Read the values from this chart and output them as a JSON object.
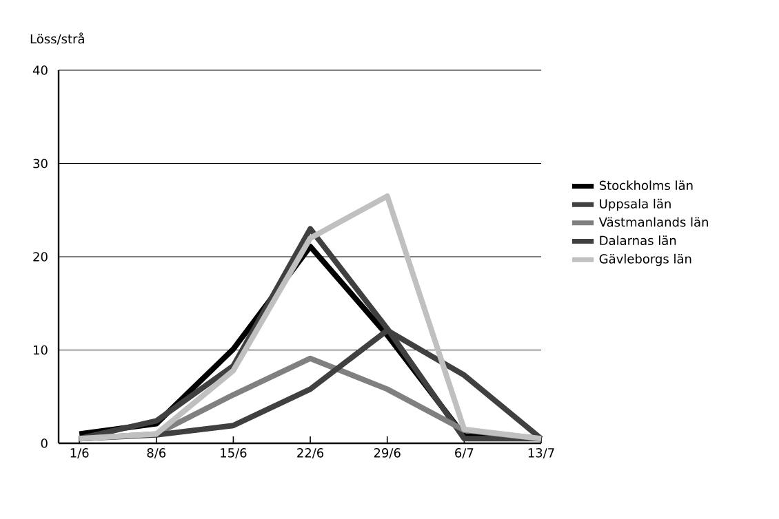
{
  "chart_data": {
    "type": "line",
    "ylabel": "Löss/strå",
    "categories": [
      "1/6",
      "8/6",
      "15/6",
      "22/6",
      "29/6",
      "6/7",
      "13/7"
    ],
    "series": [
      {
        "name": "Stockholms län",
        "color": "#000000",
        "values": [
          1.0,
          2.1,
          10.1,
          21.1,
          11.6,
          0.8,
          0.5
        ]
      },
      {
        "name": "Uppsala län",
        "color": "#404040",
        "values": [
          0.5,
          2.4,
          8.3,
          23.0,
          12.3,
          0.5,
          0.5
        ]
      },
      {
        "name": "Västmanlands län",
        "color": "#808080",
        "values": [
          0.5,
          1.0,
          5.2,
          9.1,
          5.8,
          1.4,
          0.5
        ]
      },
      {
        "name": "Dalarnas län",
        "color": "#404040",
        "values": [
          0.5,
          0.9,
          1.9,
          5.8,
          12.1,
          7.3,
          0.5
        ]
      },
      {
        "name": "Gävleborgs län",
        "color": "#c0c0c0",
        "values": [
          0.5,
          1.0,
          7.8,
          22.0,
          26.5,
          1.5,
          0.5
        ]
      }
    ],
    "ylim": [
      0,
      40
    ],
    "yticks": [
      0,
      10,
      20,
      30,
      40
    ],
    "grid": "y",
    "legend": "right",
    "marker": "none",
    "line_style": "solid"
  }
}
